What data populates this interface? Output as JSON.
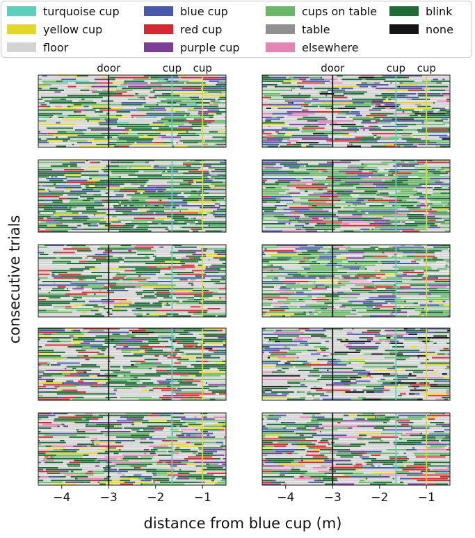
{
  "legend": [
    {
      "label": "turquoise cup",
      "color": "#5ecfbd"
    },
    {
      "label": "yellow cup",
      "color": "#e3d72a"
    },
    {
      "label": "floor",
      "color": "#d3d3d3"
    },
    {
      "label": "blue cup",
      "color": "#4a5aab"
    },
    {
      "label": "red cup",
      "color": "#d42a2f"
    },
    {
      "label": "purple cup",
      "color": "#7b3f98"
    },
    {
      "label": "cups on table",
      "color": "#6bb86a"
    },
    {
      "label": "table",
      "color": "#909090"
    },
    {
      "label": "elsewhere",
      "color": "#e384b5"
    },
    {
      "label": "blink",
      "color": "#1f6b35"
    },
    {
      "label": "none",
      "color": "#151515"
    }
  ],
  "chart_data": {
    "type": "heatmap",
    "description_kind": "per-trial gaze target raster, 5 rows x 2 columns of panels",
    "xlabel": "distance from blue cup (m)",
    "ylabel": "consecutive trials",
    "xlim": [
      -4.5,
      -0.5
    ],
    "xticks": [
      -4,
      -3,
      -2,
      -1
    ],
    "xtick_labels": [
      "−4",
      "−3",
      "−2",
      "−1"
    ],
    "annotations": [
      {
        "label": "door",
        "x": -3.0,
        "color": "#151515"
      },
      {
        "label": "cup",
        "x": -1.65,
        "color": "#5ecfbd"
      },
      {
        "label": "cup",
        "x": -1.0,
        "color": "#e3d72a"
      }
    ],
    "panels": [
      {
        "row": 0,
        "col": 0,
        "trials": 40,
        "mix": {
          "floor": 40,
          "blink": 28,
          "cups on table": 10,
          "yellow cup": 6,
          "blue cup": 6,
          "purple cup": 3,
          "red cup": 3,
          "elsewhere": 2,
          "turquoise cup": 2
        }
      },
      {
        "row": 0,
        "col": 1,
        "trials": 40,
        "mix": {
          "floor": 42,
          "blink": 22,
          "cups on table": 8,
          "blue cup": 10,
          "purple cup": 4,
          "red cup": 4,
          "elsewhere": 3,
          "none": 4,
          "yellow cup": 3
        }
      },
      {
        "row": 1,
        "col": 0,
        "trials": 40,
        "mix": {
          "blink": 38,
          "floor": 30,
          "cups on table": 12,
          "blue cup": 8,
          "yellow cup": 4,
          "purple cup": 3,
          "red cup": 3,
          "table": 2
        }
      },
      {
        "row": 1,
        "col": 1,
        "trials": 40,
        "mix": {
          "cups on table": 34,
          "blink": 22,
          "floor": 22,
          "blue cup": 10,
          "purple cup": 5,
          "red cup": 3,
          "elsewhere": 2,
          "yellow cup": 2
        }
      },
      {
        "row": 2,
        "col": 0,
        "trials": 40,
        "mix": {
          "floor": 46,
          "blink": 26,
          "cups on table": 10,
          "red cup": 6,
          "blue cup": 4,
          "yellow cup": 4,
          "purple cup": 2,
          "elsewhere": 2
        }
      },
      {
        "row": 2,
        "col": 1,
        "trials": 40,
        "mix": {
          "cups on table": 30,
          "floor": 28,
          "blink": 18,
          "blue cup": 12,
          "purple cup": 4,
          "red cup": 4,
          "yellow cup": 2,
          "elsewhere": 2
        }
      },
      {
        "row": 3,
        "col": 0,
        "trials": 40,
        "mix": {
          "floor": 38,
          "blink": 30,
          "cups on table": 10,
          "red cup": 10,
          "blue cup": 4,
          "yellow cup": 4,
          "none": 2,
          "purple cup": 2
        }
      },
      {
        "row": 3,
        "col": 1,
        "trials": 40,
        "mix": {
          "floor": 52,
          "blink": 14,
          "blue cup": 10,
          "cups on table": 8,
          "none": 6,
          "yellow cup": 3,
          "elsewhere": 3,
          "purple cup": 2,
          "red cup": 2
        }
      },
      {
        "row": 4,
        "col": 0,
        "trials": 40,
        "mix": {
          "floor": 36,
          "blink": 24,
          "cups on table": 12,
          "elsewhere": 6,
          "purple cup": 6,
          "red cup": 6,
          "yellow cup": 5,
          "blue cup": 5
        }
      },
      {
        "row": 4,
        "col": 1,
        "trials": 40,
        "mix": {
          "floor": 44,
          "blink": 22,
          "cups on table": 10,
          "red cup": 8,
          "blue cup": 6,
          "purple cup": 4,
          "elsewhere": 4,
          "yellow cup": 2
        }
      }
    ]
  }
}
